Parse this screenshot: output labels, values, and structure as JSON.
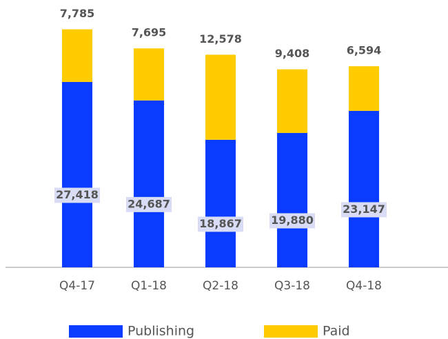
{
  "chart_data": {
    "type": "stacked_bar",
    "categories": [
      "Q4-17",
      "Q1-18",
      "Q2-18",
      "Q3-18",
      "Q4-18"
    ],
    "series": [
      {
        "name": "Publishing",
        "color": "#0a3cff",
        "values": [
          27418,
          24687,
          18867,
          19880,
          23147
        ],
        "value_labels": [
          "27,418",
          "24,687",
          "18,867",
          "19,880",
          "23,147"
        ]
      },
      {
        "name": "Paid",
        "color": "#ffcc00",
        "values": [
          7785,
          7695,
          12578,
          9408,
          6594
        ],
        "value_labels": [
          "7,785",
          "7,695",
          "12,578",
          "9,408",
          "6,594"
        ]
      }
    ],
    "ylim": [
      0,
      37500
    ],
    "legend": "bottom"
  }
}
